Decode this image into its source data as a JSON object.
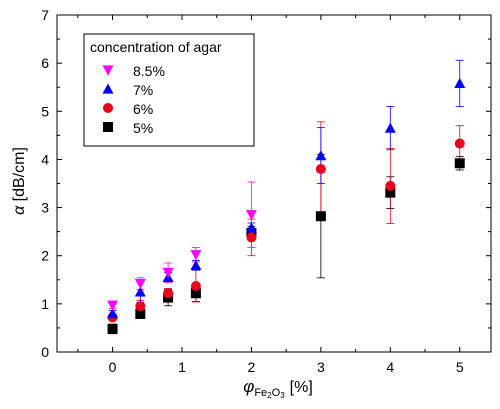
{
  "chart_data": {
    "type": "scatter",
    "x": [
      0,
      0.4,
      0.8,
      1.2,
      2,
      3,
      4,
      5
    ],
    "xlim": [
      -0.8,
      5.45
    ],
    "ylim": [
      0,
      7
    ],
    "xticks": [
      0,
      1,
      2,
      3,
      4,
      5
    ],
    "yticks": [
      0,
      1,
      2,
      3,
      4,
      5,
      6,
      7
    ],
    "xlabel": {
      "symbol": "φ",
      "subscript": "Fe",
      "sub_index_1": "2",
      "subscript_2": "O",
      "sub_index_2": "3",
      "unit": "[%]"
    },
    "ylabel": {
      "symbol": "α",
      "unit": "[dB/cm]"
    },
    "legend": {
      "title": "concentration of agar",
      "position": "top-left"
    },
    "series": [
      {
        "name": "8.5%",
        "marker": "triangle-down",
        "color": "#ff00ff",
        "values": [
          0.97,
          1.42,
          1.65,
          2.02,
          2.85,
          null,
          null,
          null
        ],
        "errors": [
          0.07,
          0.12,
          0.2,
          0.15,
          0.68,
          null,
          null,
          null
        ]
      },
      {
        "name": "7%",
        "marker": "triangle-up",
        "color": "#0000ff",
        "values": [
          0.8,
          1.25,
          1.55,
          1.8,
          2.58,
          4.08,
          4.65,
          5.58
        ],
        "errors": [
          0.06,
          0.22,
          0.1,
          0.1,
          0.1,
          0.58,
          0.45,
          0.48
        ]
      },
      {
        "name": "6%",
        "marker": "circle",
        "color": "#e8001c",
        "values": [
          0.72,
          0.95,
          1.22,
          1.37,
          2.38,
          3.8,
          3.45,
          4.33
        ],
        "errors": [
          0.06,
          0.12,
          0.1,
          0.33,
          0.38,
          0.98,
          0.78,
          0.37
        ]
      },
      {
        "name": "5%",
        "marker": "square",
        "color": "#000000",
        "values": [
          0.48,
          0.79,
          1.13,
          1.22,
          2.47,
          2.82,
          3.31,
          3.92
        ],
        "errors": [
          0.1,
          0.08,
          0.17,
          0.17,
          0.14,
          1.28,
          0.33,
          0.14
        ]
      }
    ]
  }
}
